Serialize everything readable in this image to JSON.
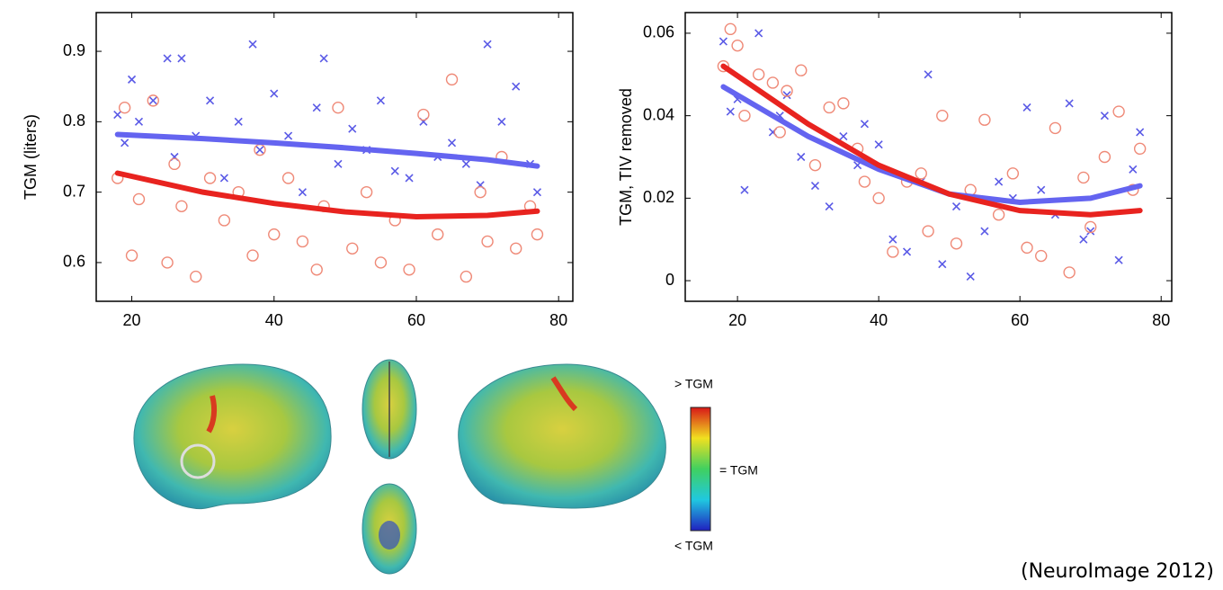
{
  "chart_data": [
    {
      "type": "scatter",
      "ylabel": "TGM (liters)",
      "xlim": [
        15,
        82
      ],
      "ylim": [
        0.545,
        0.955
      ],
      "xticks": [
        20,
        40,
        60,
        80
      ],
      "yticks": [
        0.6,
        0.7,
        0.8,
        0.9
      ],
      "grid": false,
      "series": [
        {
          "style": "cross",
          "color": "#5a5ae6",
          "x": [
            18,
            19,
            20,
            21,
            23,
            25,
            26,
            27,
            29,
            31,
            33,
            35,
            37,
            38,
            40,
            42,
            44,
            46,
            47,
            49,
            51,
            53,
            55,
            57,
            59,
            61,
            63,
            65,
            67,
            69,
            70,
            72,
            74,
            76,
            77
          ],
          "values": [
            0.81,
            0.77,
            0.86,
            0.8,
            0.83,
            0.89,
            0.75,
            0.89,
            0.78,
            0.83,
            0.72,
            0.8,
            0.91,
            0.76,
            0.84,
            0.78,
            0.7,
            0.82,
            0.89,
            0.74,
            0.79,
            0.76,
            0.83,
            0.73,
            0.72,
            0.8,
            0.75,
            0.77,
            0.74,
            0.71,
            0.91,
            0.8,
            0.85,
            0.74,
            0.7
          ]
        },
        {
          "style": "circle",
          "color": "#ef8a78",
          "x": [
            18,
            19,
            20,
            21,
            23,
            25,
            26,
            27,
            29,
            31,
            33,
            35,
            37,
            38,
            40,
            42,
            44,
            46,
            47,
            49,
            51,
            53,
            55,
            57,
            59,
            61,
            63,
            65,
            67,
            69,
            70,
            72,
            74,
            76,
            77
          ],
          "values": [
            0.72,
            0.82,
            0.61,
            0.69,
            0.83,
            0.6,
            0.74,
            0.68,
            0.58,
            0.72,
            0.66,
            0.7,
            0.61,
            0.76,
            0.64,
            0.72,
            0.63,
            0.59,
            0.68,
            0.82,
            0.62,
            0.7,
            0.6,
            0.66,
            0.59,
            0.81,
            0.64,
            0.86,
            0.58,
            0.7,
            0.63,
            0.75,
            0.62,
            0.68,
            0.64
          ]
        },
        {
          "style": "line",
          "color": "#6464f0",
          "x": [
            18,
            30,
            40,
            50,
            60,
            70,
            77
          ],
          "values": [
            0.782,
            0.776,
            0.77,
            0.763,
            0.755,
            0.746,
            0.737
          ]
        },
        {
          "style": "line",
          "color": "#e8231f",
          "x": [
            18,
            30,
            40,
            50,
            60,
            70,
            77
          ],
          "values": [
            0.727,
            0.7,
            0.684,
            0.672,
            0.665,
            0.667,
            0.673
          ]
        }
      ]
    },
    {
      "type": "scatter",
      "ylabel": "TGM, TIV removed",
      "xlim": [
        12.6,
        81.5
      ],
      "ylim": [
        -0.005,
        0.065
      ],
      "xticks": [
        20,
        40,
        60,
        80
      ],
      "yticks": [
        0,
        0.02,
        0.04,
        0.06
      ],
      "grid": false,
      "series": [
        {
          "style": "cross",
          "color": "#5a5ae6",
          "x": [
            18,
            19,
            20,
            21,
            23,
            25,
            26,
            27,
            29,
            31,
            33,
            35,
            37,
            38,
            40,
            42,
            44,
            46,
            47,
            49,
            51,
            53,
            55,
            57,
            59,
            61,
            63,
            65,
            67,
            69,
            70,
            72,
            74,
            76,
            77
          ],
          "values": [
            0.058,
            0.041,
            0.044,
            0.022,
            0.06,
            0.036,
            0.04,
            0.045,
            0.03,
            0.023,
            0.018,
            0.035,
            0.028,
            0.038,
            0.033,
            0.01,
            0.007,
            0.024,
            0.05,
            0.004,
            0.018,
            0.001,
            0.012,
            0.024,
            0.02,
            0.042,
            0.022,
            0.016,
            0.043,
            0.01,
            0.012,
            0.04,
            0.005,
            0.027,
            0.036
          ]
        },
        {
          "style": "circle",
          "color": "#ef8a78",
          "x": [
            18,
            19,
            20,
            21,
            23,
            25,
            26,
            27,
            29,
            31,
            33,
            35,
            37,
            38,
            40,
            42,
            44,
            46,
            47,
            49,
            51,
            53,
            55,
            57,
            59,
            61,
            63,
            65,
            67,
            69,
            70,
            72,
            74,
            76,
            77
          ],
          "values": [
            0.052,
            0.061,
            0.057,
            0.04,
            0.05,
            0.048,
            0.036,
            0.046,
            0.051,
            0.028,
            0.042,
            0.043,
            0.032,
            0.024,
            0.02,
            0.007,
            0.024,
            0.026,
            0.012,
            0.04,
            0.009,
            0.022,
            0.039,
            0.016,
            0.026,
            0.008,
            0.006,
            0.037,
            0.002,
            0.025,
            0.013,
            0.03,
            0.041,
            0.022,
            0.032
          ]
        },
        {
          "style": "line",
          "color": "#6464f0",
          "x": [
            18,
            30,
            40,
            50,
            60,
            70,
            77
          ],
          "values": [
            0.047,
            0.035,
            0.027,
            0.021,
            0.019,
            0.02,
            0.023
          ]
        },
        {
          "style": "line",
          "color": "#e8231f",
          "x": [
            18,
            30,
            40,
            50,
            60,
            70,
            77
          ],
          "values": [
            0.052,
            0.038,
            0.028,
            0.021,
            0.017,
            0.016,
            0.017
          ]
        }
      ]
    }
  ],
  "colorbar": {
    "labels": [
      "> TGM",
      "= TGM",
      "< TGM"
    ]
  },
  "citation": "(NeuroImage 2012)"
}
